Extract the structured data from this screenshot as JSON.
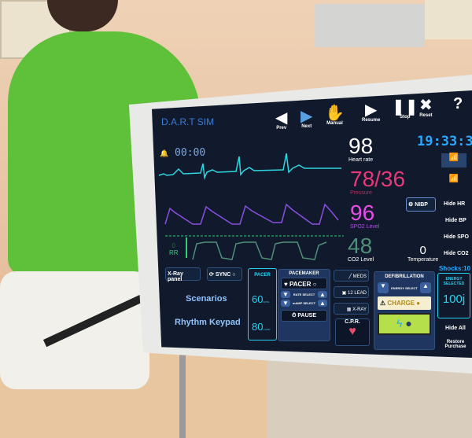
{
  "app": {
    "logo": "D.A.R.T SIM"
  },
  "toolbar": [
    {
      "label": "Prev",
      "icon": "prev-icon"
    },
    {
      "label": "Next",
      "icon": "next-icon"
    },
    {
      "label": "Manual",
      "icon": "hand-icon"
    },
    {
      "label": "Resume",
      "icon": "play-icon"
    },
    {
      "label": "Stop",
      "icon": "pause-icon"
    },
    {
      "label": "Reset",
      "icon": "x-icon"
    },
    {
      "label": "?",
      "icon": "help-icon"
    }
  ],
  "clock": "19:33:38",
  "alarm_timer": "00:00",
  "vitals": {
    "hr": {
      "value": "98",
      "label": "Heart rate",
      "color": "#ffffff"
    },
    "bp": {
      "value": "78/36",
      "label": "Pressure",
      "color": "#e8387a"
    },
    "spo2": {
      "value": "96",
      "label": "SPO2 Level",
      "color": "#e64fe6"
    },
    "co2": {
      "value": "48",
      "label": "CO2 Level",
      "color": "#4f8f78"
    },
    "rr": {
      "value": "0",
      "label": "RR"
    },
    "temp": {
      "value": "0",
      "label": "Temperature"
    }
  },
  "right": {
    "nibp": "NIBP",
    "hide_hr": "Hide HR",
    "hide_bp": "Hide BP",
    "hide_spo": "Hide SPO",
    "hide_co2": "Hide CO2",
    "shocks": "Shocks:10",
    "hide_all": "Hide All",
    "restore": "Restore Purchase"
  },
  "bottom": {
    "xray_panel": "X-Ray panel",
    "sync": "SYNC",
    "scenarios": "Scenarios",
    "rhythm": "Rhythm Keypad"
  },
  "pacer": {
    "title": "PACER",
    "rate": "60",
    "rate_label": "RATE",
    "mamp": "80",
    "mamp_label": "mAMP"
  },
  "pacemaker": {
    "title": "PACEMAKER",
    "pacer": "PACER",
    "rate_select": "RATE SELECT",
    "mamp_select": "mAMP SELECT",
    "pause": "PAUSE"
  },
  "tools": {
    "meds": "MEDS",
    "lead": "12 LEAD",
    "xray": "X-RAY",
    "cpr": "C.P.R."
  },
  "defib": {
    "title": "DEFIBRILLATION",
    "energy_select": "ENERGY SELECT",
    "charge": "CHARGE",
    "energy_selected_label": "ENERGY SELECTED",
    "energy": "100j"
  }
}
